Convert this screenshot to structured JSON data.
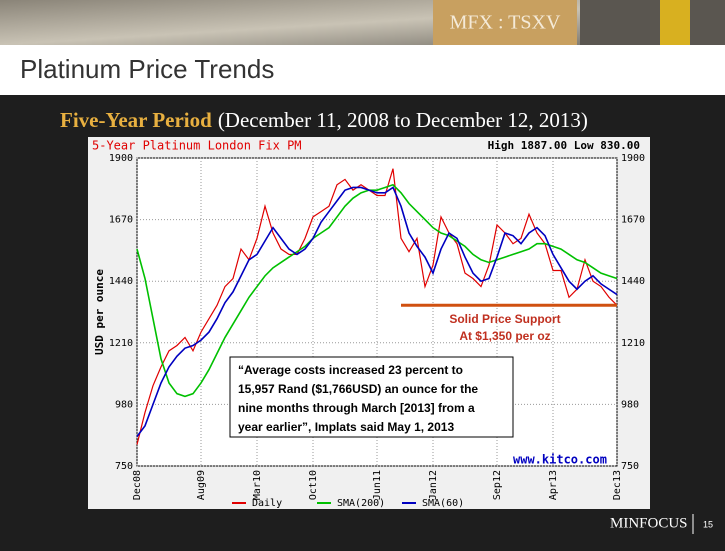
{
  "header": {
    "title": "Platinum Price Trends",
    "ticker": "MFX : TSXV"
  },
  "subtitle": {
    "lead": "Five-Year Period",
    "rest": "(December 11, 2008 to December 12, 2013)"
  },
  "chart_data": {
    "type": "line",
    "title": "5-Year Platinum London Fix PM",
    "high_low": "High 1887.00 Low 830.00",
    "y_label": "USD per ounce",
    "source": "www.kitco.com",
    "x": [
      0,
      1,
      2,
      3,
      4,
      5,
      6,
      7,
      8,
      9,
      10,
      11,
      12,
      13,
      14,
      15,
      16,
      17,
      18,
      19,
      20,
      21,
      22,
      23,
      24,
      25,
      26,
      27,
      28,
      29,
      30,
      31,
      32,
      33,
      34,
      35,
      36,
      37,
      38,
      39,
      40,
      41,
      42,
      43,
      44,
      45,
      46,
      47,
      48,
      49,
      50,
      51,
      52,
      53,
      54,
      55,
      56,
      57,
      58,
      59,
      60
    ],
    "xlim": [
      0,
      60
    ],
    "xticks": [
      {
        "value": 0,
        "label": "Dec08"
      },
      {
        "value": 8,
        "label": "Aug09"
      },
      {
        "value": 15,
        "label": "Mar10"
      },
      {
        "value": 22,
        "label": "Oct10"
      },
      {
        "value": 30,
        "label": "Jun11"
      },
      {
        "value": 37,
        "label": "Jan12"
      },
      {
        "value": 45,
        "label": "Sep12"
      },
      {
        "value": 52,
        "label": "Apr13"
      },
      {
        "value": 60,
        "label": "Dec13"
      }
    ],
    "ylim": [
      750,
      1900
    ],
    "yticks": [
      750,
      980,
      1210,
      1440,
      1670,
      1900
    ],
    "grid": true,
    "series": [
      {
        "name": "Daily",
        "color": "#e00000",
        "values": [
          830,
          950,
          1050,
          1120,
          1180,
          1200,
          1230,
          1180,
          1250,
          1300,
          1350,
          1420,
          1450,
          1560,
          1520,
          1600,
          1720,
          1620,
          1560,
          1540,
          1540,
          1600,
          1680,
          1700,
          1720,
          1800,
          1820,
          1780,
          1800,
          1780,
          1760,
          1760,
          1860,
          1600,
          1550,
          1600,
          1420,
          1500,
          1680,
          1620,
          1580,
          1470,
          1450,
          1420,
          1500,
          1650,
          1620,
          1580,
          1600,
          1690,
          1620,
          1580,
          1480,
          1480,
          1380,
          1410,
          1520,
          1440,
          1420,
          1380,
          1350
        ]
      },
      {
        "name": "SMA(200)",
        "color": "#00c000",
        "values": [
          1560,
          1450,
          1300,
          1150,
          1060,
          1020,
          1010,
          1020,
          1060,
          1110,
          1170,
          1230,
          1280,
          1330,
          1380,
          1420,
          1460,
          1490,
          1510,
          1530,
          1550,
          1570,
          1600,
          1620,
          1640,
          1680,
          1720,
          1750,
          1770,
          1780,
          1780,
          1790,
          1800,
          1770,
          1730,
          1700,
          1670,
          1640,
          1620,
          1610,
          1590,
          1570,
          1540,
          1520,
          1510,
          1520,
          1530,
          1540,
          1550,
          1560,
          1580,
          1580,
          1570,
          1560,
          1540,
          1520,
          1510,
          1490,
          1470,
          1460,
          1450
        ]
      },
      {
        "name": "SMA(60)",
        "color": "#0000c0",
        "values": [
          860,
          900,
          980,
          1060,
          1120,
          1160,
          1190,
          1200,
          1220,
          1250,
          1300,
          1360,
          1400,
          1460,
          1520,
          1540,
          1590,
          1640,
          1600,
          1560,
          1540,
          1560,
          1600,
          1660,
          1700,
          1740,
          1780,
          1790,
          1790,
          1780,
          1770,
          1770,
          1790,
          1720,
          1620,
          1570,
          1530,
          1470,
          1560,
          1620,
          1600,
          1530,
          1470,
          1440,
          1450,
          1530,
          1620,
          1610,
          1580,
          1620,
          1640,
          1610,
          1540,
          1490,
          1440,
          1410,
          1440,
          1460,
          1430,
          1410,
          1390
        ]
      }
    ],
    "support": {
      "value": 1350,
      "from_x": 33,
      "color": "#d05010",
      "labels": [
        "Solid Price Support",
        "At $1,350 per oz"
      ]
    },
    "quote": [
      "“Average costs increased 23 percent to",
      "15,957 Rand ($1,766USD) an ounce for the",
      "nine months through March [2013] from a",
      "year earlier”, Implats said May 1, 2013"
    ]
  },
  "footer": {
    "brand": "MINFOCUS",
    "page": "15"
  }
}
